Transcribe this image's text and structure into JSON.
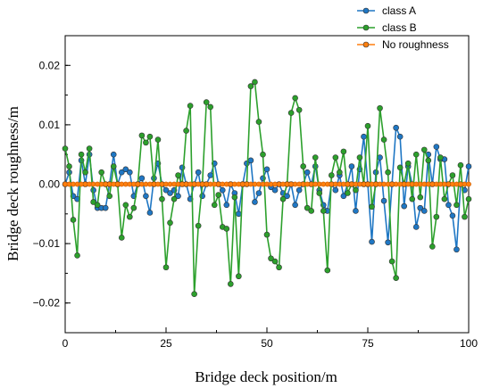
{
  "chart_data": {
    "type": "line",
    "title": "",
    "xlabel": "Bridge deck position/m",
    "ylabel": "Bridge deck roughness/m",
    "xlim": [
      0,
      100
    ],
    "ylim": [
      -0.025,
      0.025
    ],
    "x_ticks": [
      0,
      25,
      50,
      75,
      100
    ],
    "y_ticks": [
      -0.02,
      -0.01,
      0.0,
      0.01,
      0.02
    ],
    "x_tick_labels": [
      "0",
      "25",
      "50",
      "75",
      "100"
    ],
    "y_tick_labels": [
      "−0.02",
      "−0.01",
      "0.00",
      "0.01",
      "0.02"
    ],
    "legend_position": "top-right",
    "grid": false,
    "series": [
      {
        "name": "class A",
        "color": "#1f77c4",
        "marker": "circle",
        "x": [
          0,
          1,
          2,
          3,
          4,
          5,
          6,
          7,
          8,
          9,
          10,
          11,
          12,
          13,
          14,
          15,
          16,
          17,
          18,
          19,
          20,
          21,
          22,
          23,
          24,
          25,
          26,
          27,
          28,
          29,
          30,
          31,
          32,
          33,
          34,
          35,
          36,
          37,
          38,
          39,
          40,
          41,
          42,
          43,
          44,
          45,
          46,
          47,
          48,
          49,
          50,
          51,
          52,
          53,
          54,
          55,
          56,
          57,
          58,
          59,
          60,
          61,
          62,
          63,
          64,
          65,
          66,
          67,
          68,
          69,
          70,
          71,
          72,
          73,
          74,
          75,
          76,
          77,
          78,
          79,
          80,
          81,
          82,
          83,
          84,
          85,
          86,
          87,
          88,
          89,
          90,
          91,
          92,
          93,
          94,
          95,
          96,
          97,
          98,
          99,
          100
        ],
        "y": [
          0.0,
          0.002,
          -0.002,
          -0.0025,
          0.004,
          0.0,
          0.005,
          -0.001,
          -0.004,
          -0.004,
          -0.004,
          0.0,
          0.005,
          0.0,
          0.002,
          0.0025,
          0.002,
          -0.002,
          0.0,
          0.001,
          -0.002,
          -0.0048,
          0.001,
          0.0035,
          0.0,
          -0.001,
          -0.0015,
          -0.001,
          -0.002,
          0.0028,
          0.0,
          -0.0025,
          0.0,
          0.002,
          -0.002,
          0.0,
          0.0015,
          0.0035,
          0.0,
          -0.001,
          -0.0035,
          0.0,
          -0.0015,
          -0.005,
          0.0,
          0.0035,
          0.004,
          -0.003,
          -0.0015,
          0.001,
          0.0025,
          -0.0005,
          -0.001,
          0.0,
          -0.0015,
          -0.002,
          0.0,
          -0.0035,
          -0.001,
          0.0,
          0.002,
          0.0,
          0.003,
          -0.001,
          -0.0035,
          -0.0045,
          0.0,
          -0.001,
          0.0015,
          -0.002,
          0.0,
          0.003,
          -0.0045,
          0.0025,
          0.008,
          0.0,
          -0.0097,
          0.002,
          0.0045,
          -0.0028,
          -0.0098,
          0.0,
          0.0095,
          0.008,
          -0.0037,
          0.003,
          0.0,
          -0.0072,
          -0.004,
          -0.0045,
          0.005,
          0.0,
          0.0063,
          0.0042,
          0.0042,
          -0.0035,
          -0.0053,
          -0.011,
          0.0,
          -0.001,
          0.003
        ]
      },
      {
        "name": "class B",
        "color": "#2ca02c",
        "marker": "circle",
        "x": [
          0,
          1,
          2,
          3,
          4,
          5,
          6,
          7,
          8,
          9,
          10,
          11,
          12,
          13,
          14,
          15,
          16,
          17,
          18,
          19,
          20,
          21,
          22,
          23,
          24,
          25,
          26,
          27,
          28,
          29,
          30,
          31,
          32,
          33,
          34,
          35,
          36,
          37,
          38,
          39,
          40,
          41,
          42,
          43,
          44,
          45,
          46,
          47,
          48,
          49,
          50,
          51,
          52,
          53,
          54,
          55,
          56,
          57,
          58,
          59,
          60,
          61,
          62,
          63,
          64,
          65,
          66,
          67,
          68,
          69,
          70,
          71,
          72,
          73,
          74,
          75,
          76,
          77,
          78,
          79,
          80,
          81,
          82,
          83,
          84,
          85,
          86,
          87,
          88,
          89,
          90,
          91,
          92,
          93,
          94,
          95,
          96,
          97,
          98,
          99,
          100
        ],
        "y": [
          0.006,
          0.003,
          -0.006,
          -0.012,
          0.005,
          0.002,
          0.006,
          -0.003,
          -0.0035,
          0.002,
          0.0,
          -0.002,
          0.003,
          0.0,
          -0.009,
          -0.0035,
          -0.0055,
          -0.004,
          0.0,
          0.0082,
          0.007,
          0.008,
          0.0,
          0.0075,
          -0.0025,
          -0.014,
          -0.0065,
          -0.0025,
          0.0015,
          0.0,
          0.009,
          0.0132,
          -0.0185,
          -0.007,
          0.0,
          0.0138,
          0.013,
          -0.0035,
          -0.0018,
          -0.0072,
          -0.0075,
          -0.0168,
          -0.0022,
          -0.0155,
          0.0,
          0.0,
          0.0165,
          0.0172,
          0.0105,
          0.005,
          -0.0085,
          -0.0125,
          -0.013,
          -0.014,
          -0.0025,
          0.0,
          0.012,
          0.0145,
          0.0125,
          0.003,
          -0.004,
          -0.0045,
          0.0045,
          -0.0015,
          -0.0045,
          -0.0145,
          0.0015,
          0.0045,
          0.002,
          0.0055,
          -0.0015,
          0.0,
          -0.001,
          0.0045,
          0.0,
          0.0098,
          -0.0038,
          0.0,
          0.0128,
          0.0075,
          0.002,
          -0.013,
          -0.0158,
          0.0028,
          0.0,
          0.0035,
          -0.0025,
          0.005,
          -0.0022,
          0.0058,
          0.004,
          -0.0105,
          -0.0055,
          0.0045,
          -0.0025,
          0.0,
          0.0015,
          -0.0035,
          0.0032,
          -0.0055,
          -0.0025
        ]
      },
      {
        "name": "No roughness",
        "color": "#ff7f0e",
        "marker": "circle",
        "x": [
          0,
          1,
          2,
          3,
          4,
          5,
          6,
          7,
          8,
          9,
          10,
          11,
          12,
          13,
          14,
          15,
          16,
          17,
          18,
          19,
          20,
          21,
          22,
          23,
          24,
          25,
          26,
          27,
          28,
          29,
          30,
          31,
          32,
          33,
          34,
          35,
          36,
          37,
          38,
          39,
          40,
          41,
          42,
          43,
          44,
          45,
          46,
          47,
          48,
          49,
          50,
          51,
          52,
          53,
          54,
          55,
          56,
          57,
          58,
          59,
          60,
          61,
          62,
          63,
          64,
          65,
          66,
          67,
          68,
          69,
          70,
          71,
          72,
          73,
          74,
          75,
          76,
          77,
          78,
          79,
          80,
          81,
          82,
          83,
          84,
          85,
          86,
          87,
          88,
          89,
          90,
          91,
          92,
          93,
          94,
          95,
          96,
          97,
          98,
          99,
          100
        ],
        "y": [
          0.0,
          0.0,
          0.0,
          0.0,
          0.0,
          0.0,
          0.0,
          0.0,
          0.0,
          0.0,
          0.0,
          0.0,
          0.0,
          0.0,
          0.0,
          0.0,
          0.0,
          0.0,
          0.0,
          0.0,
          0.0,
          0.0,
          0.0,
          0.0,
          0.0,
          0.0,
          0.0,
          0.0,
          0.0,
          0.0,
          0.0,
          0.0,
          0.0,
          0.0,
          0.0,
          0.0,
          0.0,
          0.0,
          0.0,
          0.0,
          0.0,
          0.0,
          0.0,
          0.0,
          0.0,
          0.0,
          0.0,
          0.0,
          0.0,
          0.0,
          0.0,
          0.0,
          0.0,
          0.0,
          0.0,
          0.0,
          0.0,
          0.0,
          0.0,
          0.0,
          0.0,
          0.0,
          0.0,
          0.0,
          0.0,
          0.0,
          0.0,
          0.0,
          0.0,
          0.0,
          0.0,
          0.0,
          0.0,
          0.0,
          0.0,
          0.0,
          0.0,
          0.0,
          0.0,
          0.0,
          0.0,
          0.0,
          0.0,
          0.0,
          0.0,
          0.0,
          0.0,
          0.0,
          0.0,
          0.0,
          0.0,
          0.0,
          0.0,
          0.0,
          0.0,
          0.0,
          0.0,
          0.0,
          0.0,
          0.0,
          0.0
        ]
      }
    ]
  }
}
